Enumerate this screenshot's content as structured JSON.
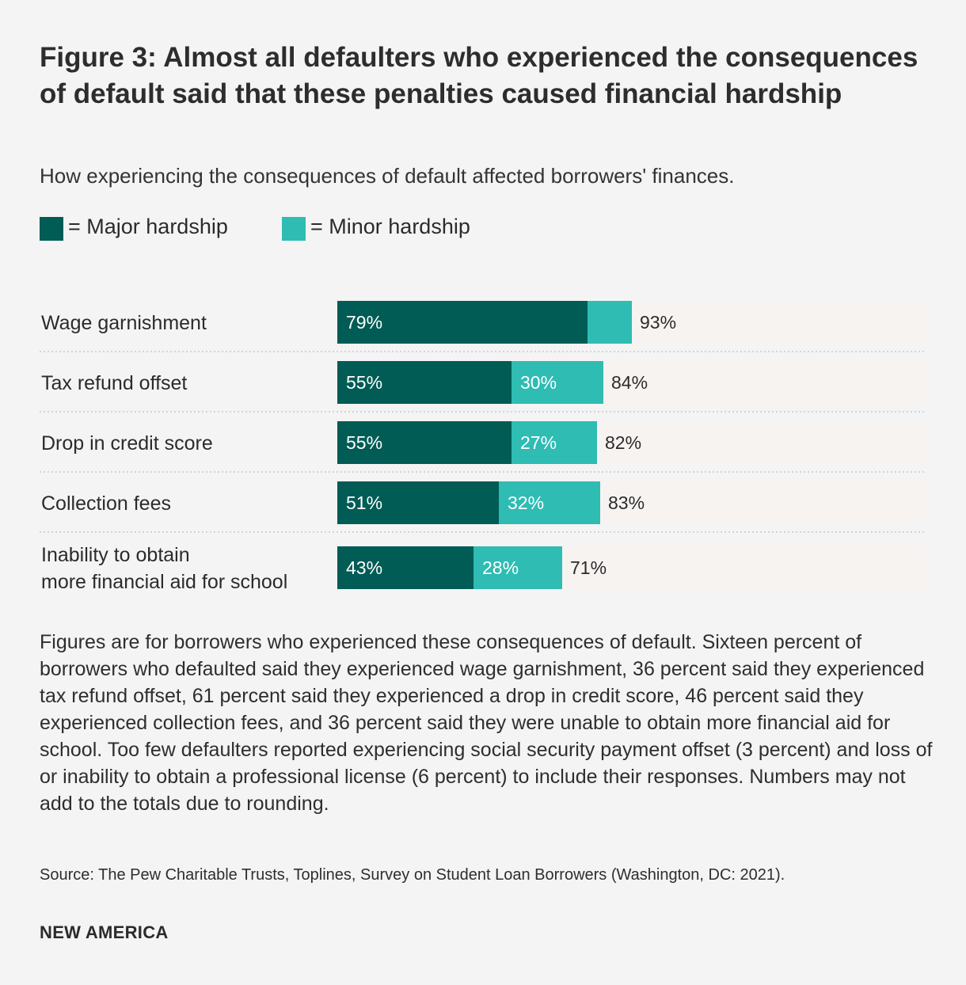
{
  "title": "Figure 3: Almost all defaulters who experienced the consequences of default said that these penalties caused financial hardship",
  "subtitle": "How experiencing the consequences of default affected borrowers' finances.",
  "legend": {
    "major": "= Major hardship",
    "minor": "= Minor hardship"
  },
  "colors": {
    "major": "#015c55",
    "minor": "#2ebcb3",
    "track": "#f7f3f1",
    "divider": "#c9c9c9"
  },
  "chart_data": {
    "type": "bar",
    "orientation": "horizontal",
    "stacked": true,
    "categories": [
      [
        "Wage garnishment"
      ],
      [
        "Tax refund offset"
      ],
      [
        "Drop in credit score"
      ],
      [
        "Collection fees"
      ],
      [
        "Inability to obtain",
        "more financial aid for school"
      ]
    ],
    "series": [
      {
        "name": "Major hardship",
        "values": [
          79,
          55,
          55,
          51,
          43
        ],
        "labels": [
          "79%",
          "55%",
          "55%",
          "51%",
          "43%"
        ]
      },
      {
        "name": "Minor hardship",
        "values": [
          15,
          30,
          27,
          32,
          28
        ],
        "labels": [
          "",
          "30%",
          "27%",
          "32%",
          "28%"
        ]
      }
    ],
    "totals": [
      93,
      84,
      82,
      83,
      71
    ],
    "total_labels": [
      "93%",
      "84%",
      "82%",
      "83%",
      "71%"
    ],
    "xlim": [
      0,
      100
    ],
    "grid": false
  },
  "note": "Figures are for borrowers who experienced these consequences of default. Sixteen percent of borrowers who defaulted said they experienced wage garnishment, 36 percent said they experienced tax refund offset, 61 percent said they experienced a drop in credit score, 46 percent said they experienced collection fees, and 36 percent said they were unable to obtain more financial aid for school. Too few defaulters reported experiencing social security payment offset (3 percent) and loss of or inability to obtain a professional license (6 percent) to include their responses. Numbers may not add to the totals due to rounding.",
  "source": "Source: The Pew Charitable Trusts, Toplines, Survey on Student Loan Borrowers (Washington, DC: 2021).",
  "brand": "NEW AMERICA"
}
